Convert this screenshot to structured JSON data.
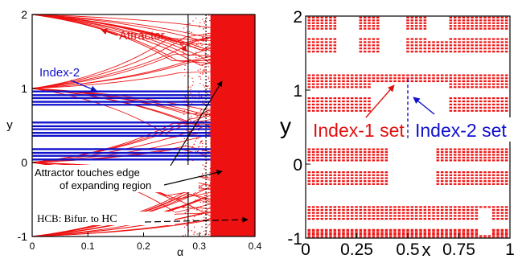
{
  "chart_data": [
    {
      "type": "scatter",
      "title": "",
      "xlabel": "α",
      "ylabel": "y",
      "xlim": [
        0,
        0.4
      ],
      "ylim": [
        -1,
        2
      ],
      "x_ticks": [
        "0",
        "0.1",
        "0.2",
        "0.3",
        "0.4"
      ],
      "y_ticks": [
        "-1",
        "0",
        "1",
        "2"
      ],
      "grid": false,
      "legend": "none",
      "series": [
        {
          "name": "Attractor",
          "color": "#ee1111",
          "description": "bifurcation diagram branches fanning out from y≈-1, 0, 1, 2 at α=0 toward dense chaotic region for α > 0.32",
          "dense_region_alpha": [
            0.32,
            0.4
          ],
          "dense_region_y": [
            -1,
            2
          ],
          "branch_origins_y": [
            2.0,
            1.0,
            0.0,
            -1.0
          ]
        },
        {
          "name": "Index-2",
          "color": "#1111cc",
          "description": "horizontal line bands across α ∈ [0, 0.32]",
          "alpha_range": [
            0,
            0.32
          ],
          "y_levels": [
            0.96,
            0.91,
            0.87,
            0.82,
            0.78,
            0.54,
            0.49,
            0.45,
            0.4,
            0.36,
            0.18,
            0.13,
            0.09,
            0.04
          ]
        }
      ],
      "vlines": [
        {
          "alpha": 0.28,
          "style": "solid"
        },
        {
          "alpha": 0.312,
          "style": "dotted"
        }
      ],
      "annotations": {
        "attractor": "Attractor",
        "index2": "Index-2",
        "touch_line1": "Attractor touches edge",
        "touch_line2": "of expanding region",
        "hcb_prefix": "HCB: Bifur. to",
        "hcb_suffix": "HC"
      }
    },
    {
      "type": "scatter",
      "title": "",
      "xlabel": "x",
      "ylabel": "y",
      "xlim": [
        0,
        1
      ],
      "ylim": [
        -1,
        2
      ],
      "x_ticks": [
        "0",
        "0.25",
        "0.5",
        "0.75",
        "1"
      ],
      "y_ticks": [
        "-1",
        "0",
        "1",
        "2"
      ],
      "grid": false,
      "legend": "none",
      "series": [
        {
          "name": "Index-1 set",
          "color": "#ee1111",
          "description": "Cantor-like set of dashed horizontal lines",
          "bands_y": [
            [
              1.83,
              1.98
            ],
            [
              1.52,
              1.69
            ],
            [
              1.04,
              1.2
            ],
            [
              0.72,
              0.89
            ],
            [
              0.05,
              0.2
            ],
            [
              -0.27,
              -0.11
            ],
            [
              -0.74,
              -0.58
            ],
            [
              -1.0,
              -0.89
            ]
          ],
          "gaps": [
            {
              "x": [
                0.16,
                0.26
              ],
              "y": [
                1.52,
                1.98
              ]
            },
            {
              "x": [
                0.37,
                0.49
              ],
              "y": [
                1.3,
                1.98
              ]
            },
            {
              "x": [
                0.6,
                0.69
              ],
              "y": [
                1.67,
                2.0
              ]
            },
            {
              "x": [
                0.32,
                0.7
              ],
              "y": [
                0.45,
                1.08
              ]
            },
            {
              "x": [
                0.4,
                0.64
              ],
              "y": [
                -0.48,
                0.32
              ]
            },
            {
              "x": [
                0.85,
                0.9
              ],
              "y": [
                -0.95,
                -0.6
              ]
            }
          ]
        },
        {
          "name": "Index-2 set",
          "color": "#1111cc",
          "description": "vertical dashed segment at x=0.5",
          "x": 0.5,
          "y_range": [
            0.35,
            1.15
          ]
        }
      ],
      "annotations": {
        "index1": "Index-1 set",
        "index2": "Index-2 set"
      }
    }
  ]
}
